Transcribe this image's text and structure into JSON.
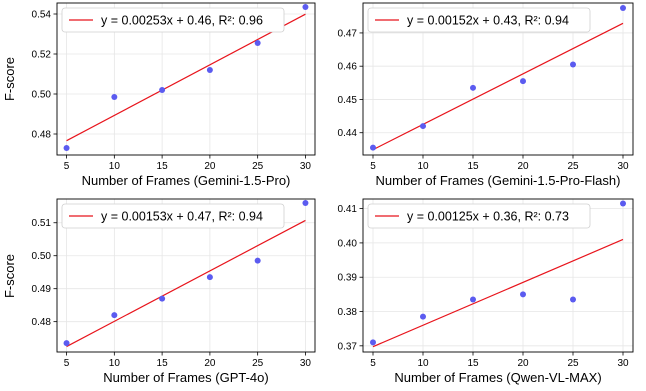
{
  "colors": {
    "point": "#5b5bf0",
    "fit_line": "#e8141c",
    "grid": "#e6e6e6",
    "frame": "#000000"
  },
  "chart_data": [
    {
      "type": "scatter",
      "xlabel": "Number of Frames (Gemini-1.5-Pro)",
      "ylabel": "F-score",
      "x": [
        5,
        10,
        15,
        20,
        25,
        30
      ],
      "y": [
        0.473,
        0.4985,
        0.502,
        0.512,
        0.5255,
        0.5435
      ],
      "xlim": [
        4,
        31
      ],
      "ylim": [
        0.4695,
        0.5455
      ],
      "xticks": [
        5,
        10,
        15,
        20,
        25,
        30
      ],
      "yticks": [
        0.48,
        0.5,
        0.52,
        0.54
      ],
      "ytick_labels": [
        "0.48",
        "0.50",
        "0.52",
        "0.54"
      ],
      "fit": {
        "slope": 0.00253,
        "intercept": 0.464,
        "label": "y = 0.00253x + 0.46, R²: 0.96"
      },
      "legend": "top-left",
      "grid": true
    },
    {
      "type": "scatter",
      "xlabel": "Number of Frames (Gemini-1.5-Pro-Flash)",
      "ylabel": "",
      "x": [
        5,
        10,
        15,
        20,
        25,
        30
      ],
      "y": [
        0.4355,
        0.442,
        0.4535,
        0.4555,
        0.4605,
        0.4775
      ],
      "xlim": [
        4,
        31
      ],
      "ylim": [
        0.4333,
        0.479
      ],
      "xticks": [
        5,
        10,
        15,
        20,
        25,
        30
      ],
      "yticks": [
        0.44,
        0.45,
        0.46,
        0.47
      ],
      "ytick_labels": [
        "0.44",
        "0.45",
        "0.46",
        "0.47"
      ],
      "fit": {
        "slope": 0.00152,
        "intercept": 0.4273,
        "label": "y = 0.00152x + 0.43, R²: 0.94"
      },
      "legend": "top-left",
      "grid": true
    },
    {
      "type": "scatter",
      "xlabel": "Number of Frames (GPT-4o)",
      "ylabel": "F-score",
      "x": [
        5,
        10,
        15,
        20,
        25,
        30
      ],
      "y": [
        0.4735,
        0.482,
        0.487,
        0.4935,
        0.4985,
        0.516
      ],
      "xlim": [
        4,
        31
      ],
      "ylim": [
        0.4708,
        0.5172
      ],
      "xticks": [
        5,
        10,
        15,
        20,
        25,
        30
      ],
      "yticks": [
        0.48,
        0.49,
        0.5,
        0.51
      ],
      "ytick_labels": [
        "0.48",
        "0.49",
        "0.50",
        "0.51"
      ],
      "fit": {
        "slope": 0.00153,
        "intercept": 0.4648,
        "label": "y = 0.00153x + 0.47, R²: 0.94"
      },
      "legend": "top-left",
      "grid": true
    },
    {
      "type": "scatter",
      "xlabel": "Number of Frames (Qwen-VL-MAX)",
      "ylabel": "",
      "x": [
        5,
        10,
        15,
        20,
        25,
        30
      ],
      "y": [
        0.371,
        0.3785,
        0.3835,
        0.385,
        0.3835,
        0.4115
      ],
      "xlim": [
        4,
        31
      ],
      "ylim": [
        0.3682,
        0.4128
      ],
      "xticks": [
        5,
        10,
        15,
        20,
        25,
        30
      ],
      "yticks": [
        0.37,
        0.38,
        0.39,
        0.4,
        0.41
      ],
      "ytick_labels": [
        "0.37",
        "0.38",
        "0.39",
        "0.40",
        "0.41"
      ],
      "fit": {
        "slope": 0.00125,
        "intercept": 0.3635,
        "label": "y = 0.00125x + 0.36, R²: 0.73"
      },
      "legend": "top-left",
      "grid": true
    }
  ]
}
